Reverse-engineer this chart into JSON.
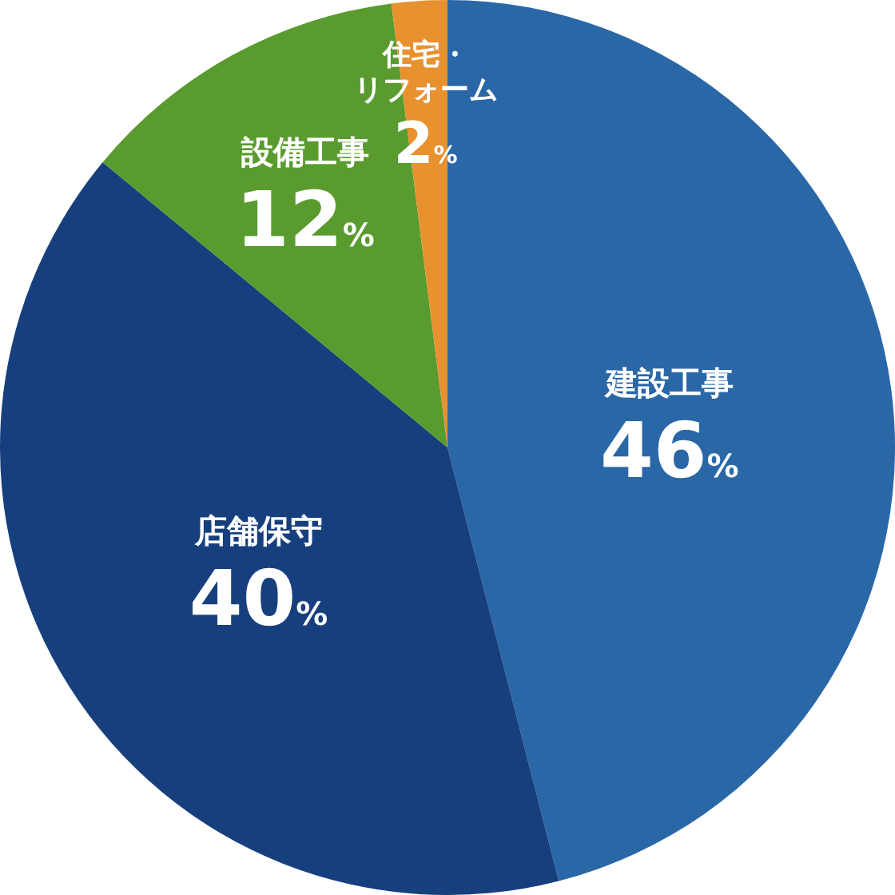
{
  "chart_data": {
    "type": "pie",
    "categories": [
      "建設工事",
      "店舗保守",
      "設備工事",
      "住宅・リフォーム"
    ],
    "values": [
      46,
      40,
      12,
      2
    ],
    "colors": [
      "#2a67a7",
      "#173f7d",
      "#5a9b2f",
      "#e8912f"
    ],
    "value_labels": [
      "46%",
      "40%",
      "12%",
      "2%"
    ]
  }
}
